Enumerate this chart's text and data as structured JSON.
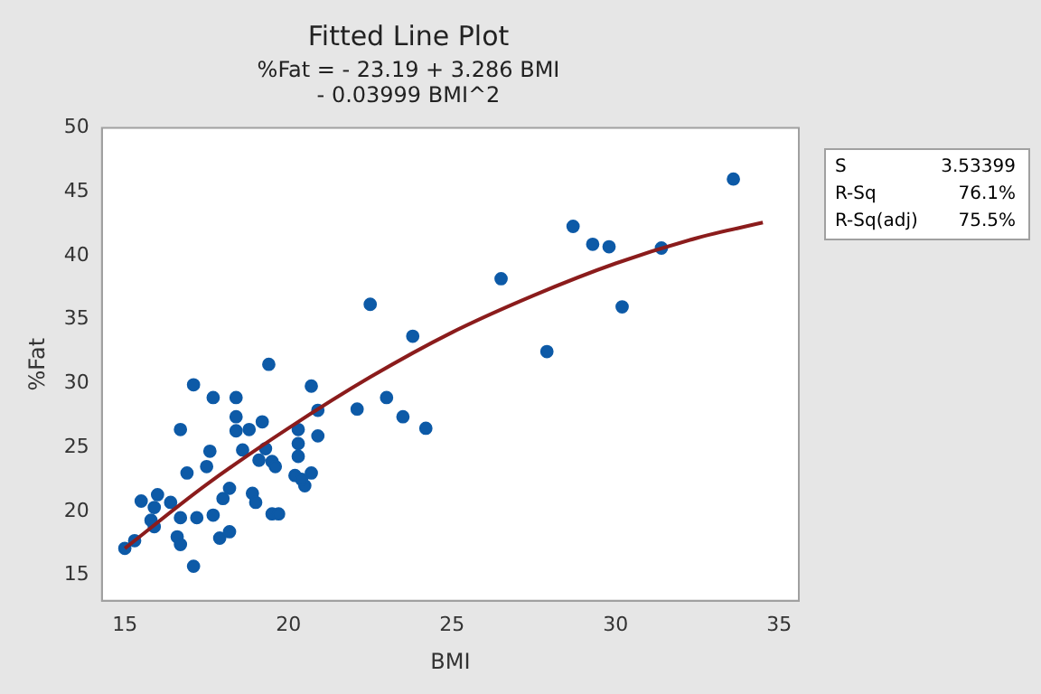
{
  "chart_data": {
    "type": "scatter",
    "title": "Fitted Line Plot",
    "subtitle": "%Fat = - 23.19 + 3.286 BMI\n- 0.03999 BMI^2",
    "xlabel": "BMI",
    "ylabel": "%Fat",
    "series": [
      {
        "marker": "circle",
        "color": "#0d5aa7",
        "x": [
          15.0,
          15.3,
          15.5,
          15.8,
          15.9,
          16.0,
          15.9,
          16.4,
          16.7,
          16.6,
          16.7,
          17.1,
          17.1,
          16.7,
          16.9,
          17.2,
          17.5,
          17.6,
          17.7,
          17.7,
          17.9,
          18.2,
          18.0,
          18.2,
          18.4,
          18.4,
          18.4,
          18.6,
          18.8,
          18.9,
          19.0,
          19.2,
          19.1,
          19.3,
          19.5,
          19.6,
          19.5,
          19.7,
          19.4,
          20.3,
          20.3,
          20.3,
          20.2,
          20.5,
          20.4,
          20.7,
          20.9,
          20.9,
          20.7,
          22.1,
          23.0,
          23.5,
          24.2,
          22.5,
          23.8,
          26.5,
          27.9,
          28.7,
          29.3,
          29.8,
          30.2,
          31.4,
          33.6
        ],
        "values": [
          17.1,
          17.7,
          20.8,
          19.3,
          20.3,
          21.3,
          18.8,
          20.7,
          19.5,
          18.0,
          17.4,
          15.7,
          29.9,
          26.4,
          23.0,
          19.5,
          23.5,
          24.7,
          28.9,
          19.7,
          17.9,
          18.4,
          21.0,
          21.8,
          28.9,
          27.4,
          26.3,
          24.8,
          26.4,
          21.4,
          20.7,
          27.0,
          24.0,
          24.9,
          23.9,
          23.5,
          19.8,
          19.8,
          31.5,
          26.4,
          25.3,
          24.3,
          22.8,
          22.0,
          22.5,
          23.0,
          27.9,
          25.9,
          29.8,
          28.0,
          28.9,
          27.4,
          26.5,
          36.2,
          33.7,
          38.2,
          32.5,
          42.3,
          40.9,
          40.7,
          36.0,
          40.6,
          46.0
        ]
      },
      {
        "type": "line",
        "marker": "none",
        "color": "#8b1c1c",
        "x": [
          15,
          17.5,
          20,
          22.5,
          25,
          27.5,
          30,
          32.5,
          34.5
        ],
        "values": [
          17.1,
          22.1,
          26.5,
          30.5,
          34.0,
          36.9,
          39.4,
          41.4,
          42.6
        ]
      }
    ],
    "xlim": [
      14.3,
      35.6
    ],
    "xticks": [
      15,
      20,
      25,
      30,
      35
    ],
    "ylim": [
      13,
      50
    ],
    "yticks": [
      15,
      20,
      25,
      30,
      35,
      40,
      45,
      50
    ],
    "grid": false,
    "legend": false,
    "annotations": [
      "S 3.53399",
      "R-Sq 76.1%",
      "R-Sq(adj) 75.5%"
    ]
  }
}
